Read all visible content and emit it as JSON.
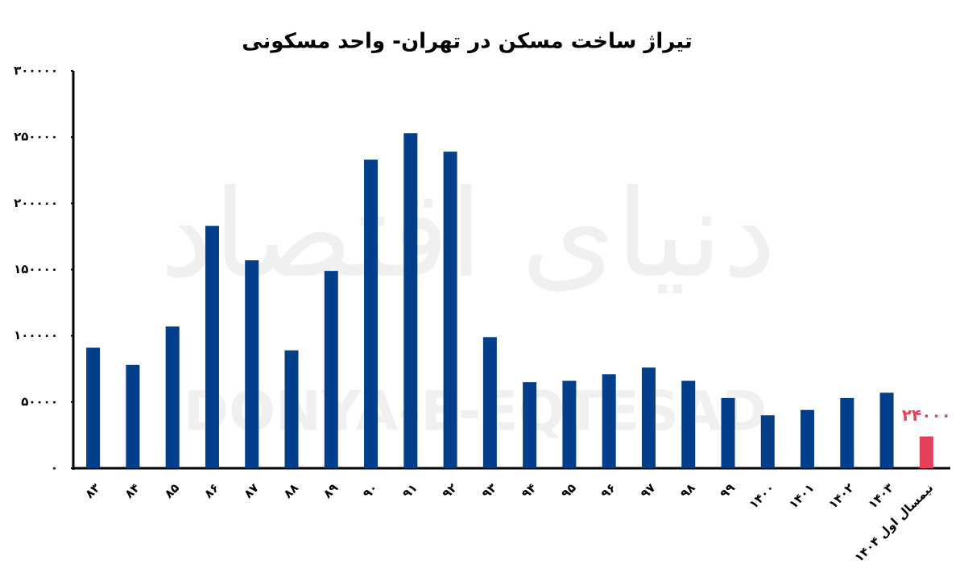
{
  "chart_data": {
    "type": "bar",
    "title": "تیراژ ساخت مسکن در تهران- واحد مسکونی",
    "watermark": "DONYA-E-EQTESAD",
    "watermark_fa": "دنیای اقتصاد",
    "categories": [
      "۸۳",
      "۸۴",
      "۸۵",
      "۸۶",
      "۸۷",
      "۸۸",
      "۸۹",
      "۹۰",
      "۹۱",
      "۹۲",
      "۹۳",
      "۹۴",
      "۹۵",
      "۹۶",
      "۹۷",
      "۹۸",
      "۹۹",
      "۱۴۰۰",
      "۱۴۰۱",
      "۱۴۰۲",
      "۱۴۰۳",
      "نیمسال اول ۱۴۰۴"
    ],
    "values": [
      91000,
      78000,
      107000,
      183000,
      157000,
      89000,
      149000,
      233000,
      253000,
      239000,
      99000,
      65000,
      66000,
      71000,
      76000,
      66000,
      53000,
      40000,
      44000,
      53000,
      57000,
      24000
    ],
    "value_labels": [
      null,
      null,
      null,
      null,
      null,
      null,
      null,
      null,
      null,
      null,
      null,
      null,
      null,
      null,
      null,
      null,
      null,
      null,
      null,
      null,
      null,
      "۲۴۰۰۰"
    ],
    "colors": [
      "#023e8a",
      "#023e8a",
      "#023e8a",
      "#023e8a",
      "#023e8a",
      "#023e8a",
      "#023e8a",
      "#023e8a",
      "#023e8a",
      "#023e8a",
      "#023e8a",
      "#023e8a",
      "#023e8a",
      "#023e8a",
      "#023e8a",
      "#023e8a",
      "#023e8a",
      "#023e8a",
      "#023e8a",
      "#023e8a",
      "#023e8a",
      "#e8405a"
    ],
    "ylim": [
      0,
      300000
    ],
    "yticks": [
      {
        "value": 0,
        "label": "۰"
      },
      {
        "value": 50000,
        "label": "۵۰۰۰۰"
      },
      {
        "value": 100000,
        "label": "۱۰۰۰۰۰"
      },
      {
        "value": 150000,
        "label": "۱۵۰۰۰۰"
      },
      {
        "value": 200000,
        "label": "۲۰۰۰۰۰"
      },
      {
        "value": 250000,
        "label": "۲۵۰۰۰۰"
      },
      {
        "value": 300000,
        "label": "۳۰۰۰۰۰"
      }
    ],
    "grid": false
  }
}
